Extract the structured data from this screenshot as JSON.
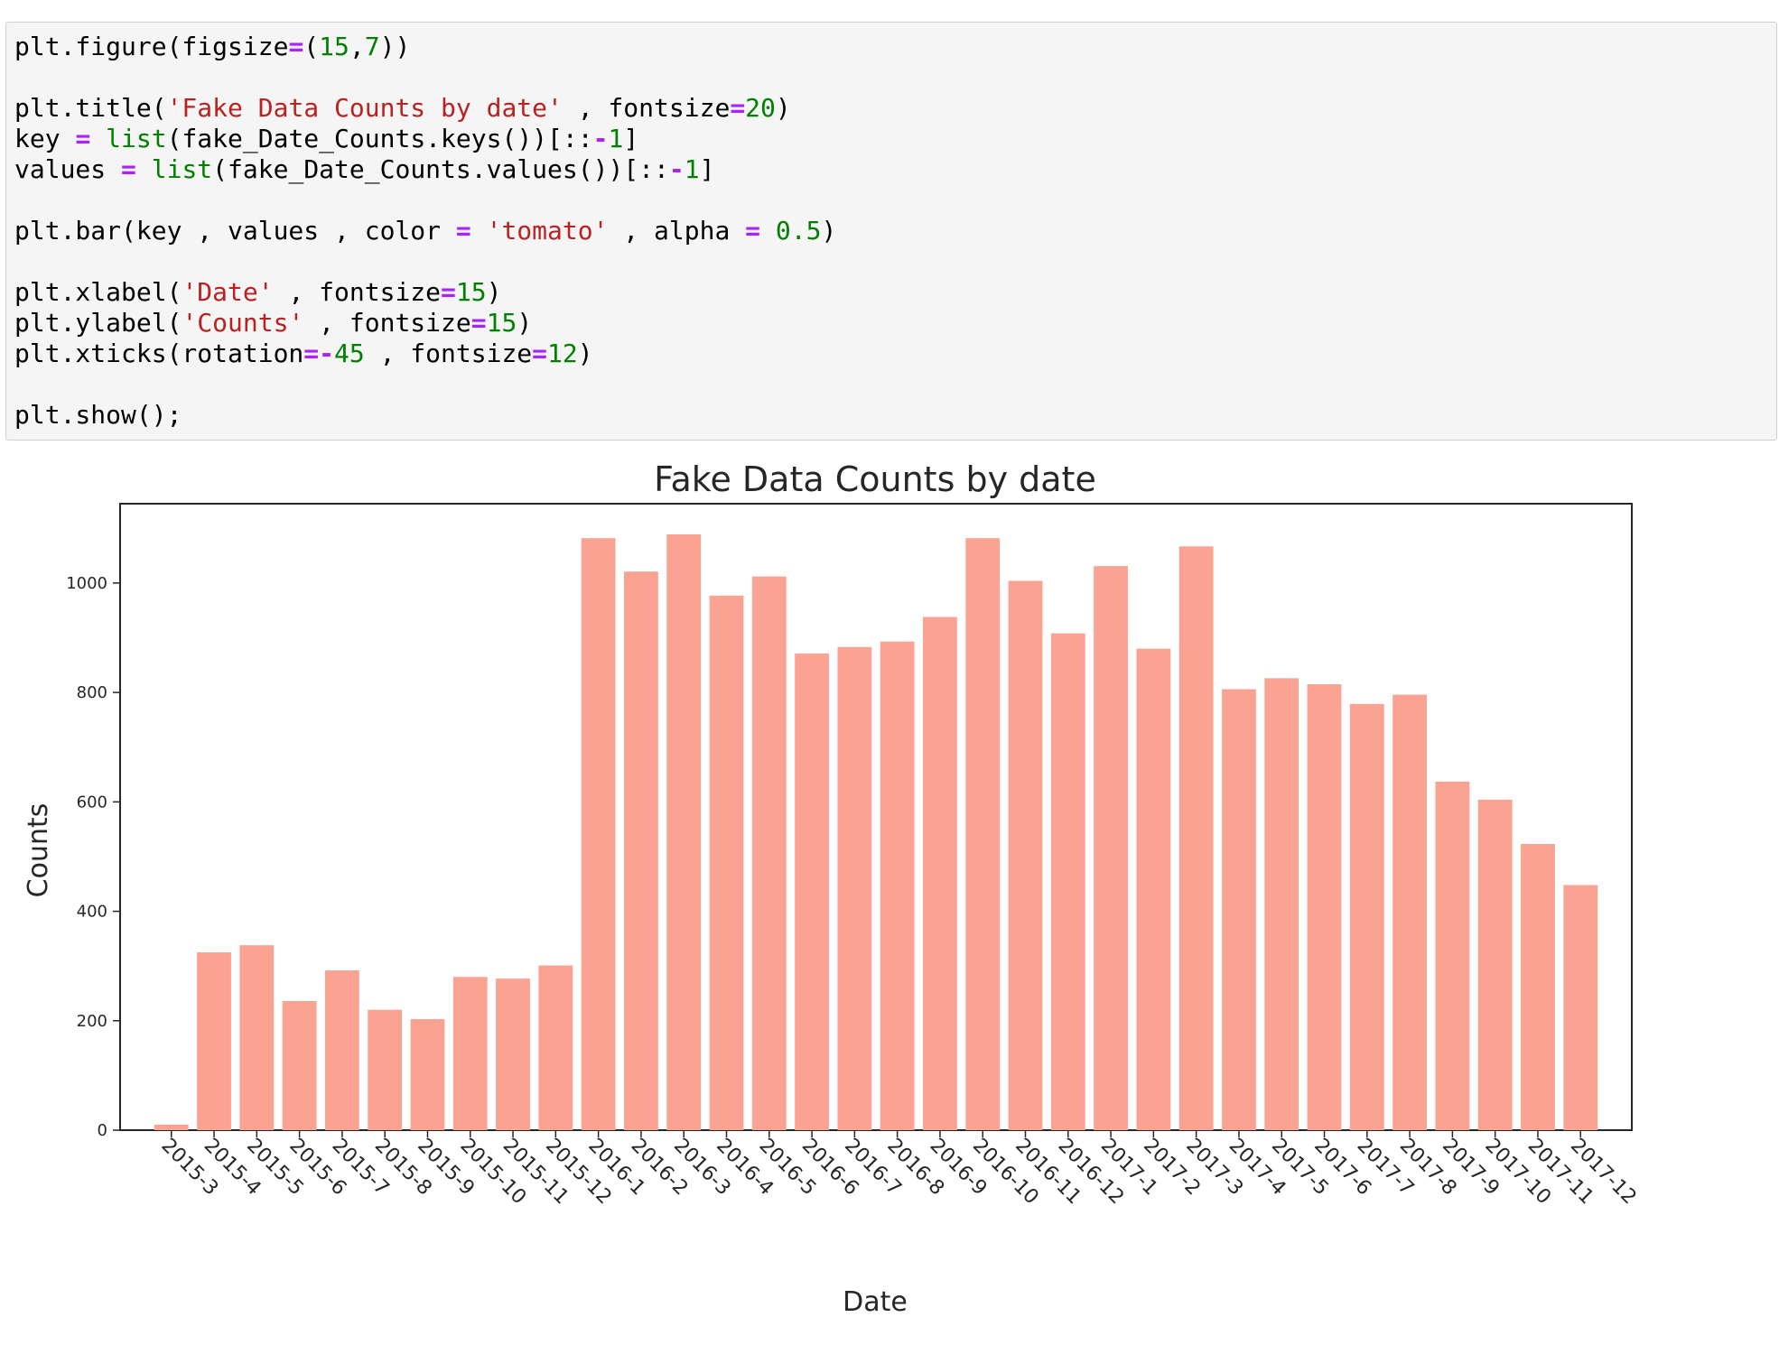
{
  "code_cell": {
    "lines": [
      [
        {
          "t": "plt.figure(figsize"
        },
        {
          "t": "=",
          "c": "o"
        },
        {
          "t": "("
        },
        {
          "t": "15",
          "c": "n"
        },
        {
          "t": ","
        },
        {
          "t": "7",
          "c": "n"
        },
        {
          "t": "))"
        }
      ],
      [],
      [
        {
          "t": "plt.title("
        },
        {
          "t": "'Fake Data Counts by date'",
          "c": "s"
        },
        {
          "t": " , fontsize"
        },
        {
          "t": "=",
          "c": "o"
        },
        {
          "t": "20",
          "c": "n"
        },
        {
          "t": ")"
        }
      ],
      [
        {
          "t": "key "
        },
        {
          "t": "=",
          "c": "o"
        },
        {
          "t": " "
        },
        {
          "t": "list",
          "c": "b"
        },
        {
          "t": "(fake_Date_Counts.keys())[::"
        },
        {
          "t": "-",
          "c": "o"
        },
        {
          "t": "1",
          "c": "n"
        },
        {
          "t": "]"
        }
      ],
      [
        {
          "t": "values "
        },
        {
          "t": "=",
          "c": "o"
        },
        {
          "t": " "
        },
        {
          "t": "list",
          "c": "b"
        },
        {
          "t": "(fake_Date_Counts.values())[::"
        },
        {
          "t": "-",
          "c": "o"
        },
        {
          "t": "1",
          "c": "n"
        },
        {
          "t": "]"
        }
      ],
      [],
      [
        {
          "t": "plt.bar(key , values , color "
        },
        {
          "t": "=",
          "c": "o"
        },
        {
          "t": " "
        },
        {
          "t": "'tomato'",
          "c": "s"
        },
        {
          "t": " , alpha "
        },
        {
          "t": "=",
          "c": "o"
        },
        {
          "t": " "
        },
        {
          "t": "0.5",
          "c": "n"
        },
        {
          "t": ")"
        }
      ],
      [],
      [
        {
          "t": "plt.xlabel("
        },
        {
          "t": "'Date'",
          "c": "s"
        },
        {
          "t": " , fontsize"
        },
        {
          "t": "=",
          "c": "o"
        },
        {
          "t": "15",
          "c": "n"
        },
        {
          "t": ")"
        }
      ],
      [
        {
          "t": "plt.ylabel("
        },
        {
          "t": "'Counts'",
          "c": "s"
        },
        {
          "t": " , fontsize"
        },
        {
          "t": "=",
          "c": "o"
        },
        {
          "t": "15",
          "c": "n"
        },
        {
          "t": ")"
        }
      ],
      [
        {
          "t": "plt.xticks(rotation"
        },
        {
          "t": "=-",
          "c": "o"
        },
        {
          "t": "45",
          "c": "n"
        },
        {
          "t": " , fontsize"
        },
        {
          "t": "=",
          "c": "o"
        },
        {
          "t": "12",
          "c": "n"
        },
        {
          "t": ")"
        }
      ],
      [],
      [
        {
          "t": "plt.show();"
        }
      ]
    ]
  },
  "chart_data": {
    "type": "bar",
    "title": "Fake Data Counts by date",
    "xlabel": "Date",
    "ylabel": "Counts",
    "categories": [
      "2015-3",
      "2015-4",
      "2015-5",
      "2015-6",
      "2015-7",
      "2015-8",
      "2015-9",
      "2015-10",
      "2015-11",
      "2015-12",
      "2016-1",
      "2016-2",
      "2016-3",
      "2016-4",
      "2016-5",
      "2016-6",
      "2016-7",
      "2016-8",
      "2016-9",
      "2016-10",
      "2016-11",
      "2016-12",
      "2017-1",
      "2017-2",
      "2017-3",
      "2017-4",
      "2017-5",
      "2017-6",
      "2017-7",
      "2017-8",
      "2017-9",
      "2017-10",
      "2017-11",
      "2017-12"
    ],
    "values": [
      10,
      325,
      338,
      236,
      292,
      220,
      203,
      280,
      277,
      301,
      1082,
      1021,
      1089,
      977,
      1012,
      871,
      883,
      893,
      938,
      1082,
      1004,
      908,
      1031,
      880,
      1067,
      806,
      826,
      815,
      779,
      796,
      637,
      604,
      523,
      448
    ],
    "ylim": [
      0,
      1145
    ],
    "yticks": [
      0,
      200,
      400,
      600,
      800,
      1000
    ],
    "xtick_rotation": -45,
    "bar_color": "#fba393",
    "grid": false
  }
}
